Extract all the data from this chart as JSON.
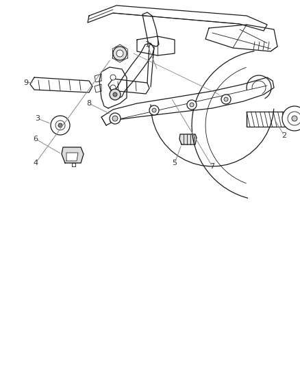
{
  "background_color": "#ffffff",
  "line_color": "#1a1a1a",
  "label_color": "#333333",
  "fig_width": 4.38,
  "fig_height": 5.33,
  "dpi": 100
}
